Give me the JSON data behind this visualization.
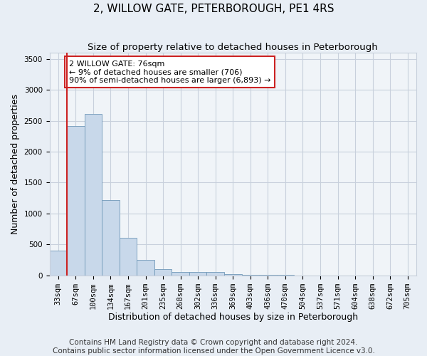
{
  "title": "2, WILLOW GATE, PETERBOROUGH, PE1 4RS",
  "subtitle": "Size of property relative to detached houses in Peterborough",
  "xlabel": "Distribution of detached houses by size in Peterborough",
  "ylabel": "Number of detached properties",
  "footer": "Contains HM Land Registry data © Crown copyright and database right 2024.\nContains public sector information licensed under the Open Government Licence v3.0.",
  "categories": [
    "33sqm",
    "67sqm",
    "100sqm",
    "134sqm",
    "167sqm",
    "201sqm",
    "235sqm",
    "268sqm",
    "302sqm",
    "336sqm",
    "369sqm",
    "403sqm",
    "436sqm",
    "470sqm",
    "504sqm",
    "537sqm",
    "571sqm",
    "604sqm",
    "638sqm",
    "672sqm",
    "705sqm"
  ],
  "values": [
    400,
    2420,
    2610,
    1220,
    610,
    250,
    100,
    60,
    60,
    50,
    20,
    10,
    5,
    3,
    2,
    1,
    1,
    0,
    0,
    0,
    0
  ],
  "bar_color": "#c8d8ea",
  "bar_edge_color": "#7098b8",
  "vline_color": "#cc2222",
  "annotation_text": "2 WILLOW GATE: 76sqm\n← 9% of detached houses are smaller (706)\n90% of semi-detached houses are larger (6,893) →",
  "annotation_box_color": "white",
  "annotation_box_edge_color": "#cc2222",
  "ylim": [
    0,
    3600
  ],
  "yticks": [
    0,
    500,
    1000,
    1500,
    2000,
    2500,
    3000,
    3500
  ],
  "background_color": "#e8eef5",
  "plot_background_color": "#f0f4f8",
  "grid_color": "#c8d0dc",
  "title_fontsize": 11,
  "subtitle_fontsize": 9.5,
  "axis_label_fontsize": 9,
  "tick_fontsize": 7.5,
  "annotation_fontsize": 8,
  "footer_fontsize": 7.5
}
